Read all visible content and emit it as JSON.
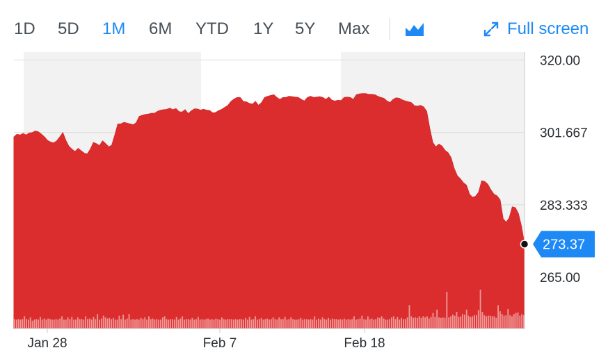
{
  "toolbar": {
    "ranges": [
      "1D",
      "5D",
      "1M",
      "6M",
      "YTD",
      "1Y",
      "5Y",
      "Max"
    ],
    "active_range": "1M",
    "chart_type_icon": "mountain-chart-icon",
    "fullscreen_label": "Full screen",
    "fullscreen_icon": "expand-arrows-icon"
  },
  "colors": {
    "price_fill": "#dc2d2e",
    "price_stroke": "#d42a2b",
    "volume_bar": "#ef9a9a",
    "accent": "#1e89f5",
    "text": "#464e56"
  },
  "chart_data": {
    "type": "area",
    "ylim": [
      252,
      322
    ],
    "y_ticks": [
      "320.00",
      "301.667",
      "283.333",
      "265.00"
    ],
    "x_ticks": [
      "Jan 28",
      "Feb 7",
      "Feb 18"
    ],
    "current_price": "273.37",
    "current_value": 273.37,
    "price": [
      300.5,
      301.2,
      301.0,
      301.4,
      301.0,
      301.5,
      301.6,
      302.0,
      301.8,
      301.2,
      300.5,
      299.6,
      299.2,
      299.0,
      299.5,
      300.5,
      301.6,
      299.6,
      298.1,
      297.4,
      296.8,
      297.6,
      297.0,
      296.4,
      296.2,
      297.4,
      299.1,
      298.8,
      298.3,
      299.5,
      298.8,
      298.0,
      298.4,
      301.0,
      303.8,
      303.8,
      304.2,
      304.0,
      303.8,
      303.6,
      304.1,
      305.7,
      306.0,
      306.2,
      306.3,
      306.5,
      306.5,
      307.0,
      307.3,
      307.4,
      307.5,
      307.8,
      307.4,
      307.7,
      306.9,
      306.8,
      307.4,
      306.4,
      307.1,
      307.6,
      307.6,
      307.3,
      307.5,
      307.3,
      307.2,
      306.6,
      306.7,
      307.2,
      307.5,
      308.0,
      308.5,
      309.5,
      310.1,
      310.5,
      310.5,
      309.5,
      309.4,
      309.0,
      308.8,
      309.5,
      308.5,
      309.2,
      310.5,
      310.8,
      311.0,
      311.2,
      310.5,
      310.0,
      310.5,
      310.5,
      310.8,
      310.7,
      310.6,
      310.5,
      310.0,
      309.6,
      310.5,
      310.8,
      310.5,
      310.6,
      310.7,
      310.5,
      310.0,
      310.6,
      309.8,
      309.6,
      309.8,
      309.7,
      310.5,
      310.6,
      310.5,
      310.0,
      311.2,
      311.4,
      311.5,
      311.5,
      311.3,
      311.3,
      311.2,
      310.8,
      310.5,
      310.3,
      309.6,
      309.2,
      310.0,
      310.4,
      310.3,
      309.9,
      309.6,
      309.4,
      309.2,
      308.4,
      308.3,
      308.5,
      308.1,
      307.0,
      302.7,
      299.1,
      298.0,
      298.7,
      298.2,
      297.1,
      296.5,
      295.2,
      292.5,
      290.7,
      289.9,
      288.9,
      288.3,
      286.0,
      285.2,
      285.5,
      286.5,
      289.4,
      289.2,
      288.5,
      287.1,
      286.0,
      285.6,
      284.6,
      279.8,
      278.9,
      280.0,
      282.8,
      282.6,
      281.1,
      277.9,
      273.37
    ],
    "volume_scale": 100,
    "volume": [
      17,
      16,
      17,
      16,
      17,
      22,
      17,
      16,
      20,
      14,
      16,
      17,
      16,
      21,
      16,
      18,
      16,
      18,
      17,
      16,
      16,
      17,
      16,
      18,
      22,
      16,
      16,
      20,
      17,
      21,
      16,
      16,
      20,
      17,
      17,
      16,
      22,
      17,
      18,
      16,
      21,
      17,
      26,
      16,
      18,
      23,
      20,
      18,
      19,
      17,
      19,
      16,
      16,
      23,
      17,
      25,
      16,
      18,
      26,
      16,
      17,
      16,
      17,
      16,
      19,
      17,
      20,
      16,
      22,
      17,
      18,
      16,
      17,
      16,
      16,
      20,
      22,
      17,
      16,
      17,
      17,
      16,
      21,
      16,
      18,
      22,
      16,
      17,
      17,
      16,
      19,
      16,
      17,
      21,
      16,
      17,
      16,
      17,
      18,
      16,
      17,
      16,
      18,
      17,
      16,
      20,
      17,
      16,
      17,
      17,
      17,
      16,
      17,
      16,
      17,
      17,
      16,
      19,
      16,
      21,
      16,
      17,
      22,
      16,
      17,
      19,
      16,
      17,
      18,
      16,
      17,
      20,
      17,
      16,
      20,
      17,
      17,
      21,
      16,
      17,
      20,
      17,
      16,
      16,
      17,
      19,
      16,
      17,
      17,
      16,
      17,
      16,
      22,
      16,
      18,
      16,
      20,
      17,
      16,
      19,
      16,
      18,
      17,
      17,
      16,
      17,
      16,
      18,
      16,
      17,
      16,
      17,
      22,
      16,
      17,
      18,
      23,
      17,
      16,
      22,
      17,
      18,
      16,
      17,
      20,
      19,
      22,
      18,
      16,
      16,
      17,
      20,
      22,
      17,
      21,
      16,
      19,
      17,
      17,
      20,
      42,
      22,
      19,
      20,
      19,
      22,
      19,
      22,
      20,
      22,
      18,
      21,
      28,
      21,
      34,
      20,
      19,
      20,
      19,
      66,
      20,
      22,
      25,
      23,
      30,
      21,
      22,
      26,
      25,
      34,
      23,
      21,
      22,
      24,
      24,
      33,
      70,
      30,
      24,
      22,
      23,
      23,
      22,
      22,
      19,
      42,
      31,
      26,
      23,
      24,
      35,
      24,
      22,
      26,
      28,
      29,
      23,
      26,
      24
    ]
  }
}
